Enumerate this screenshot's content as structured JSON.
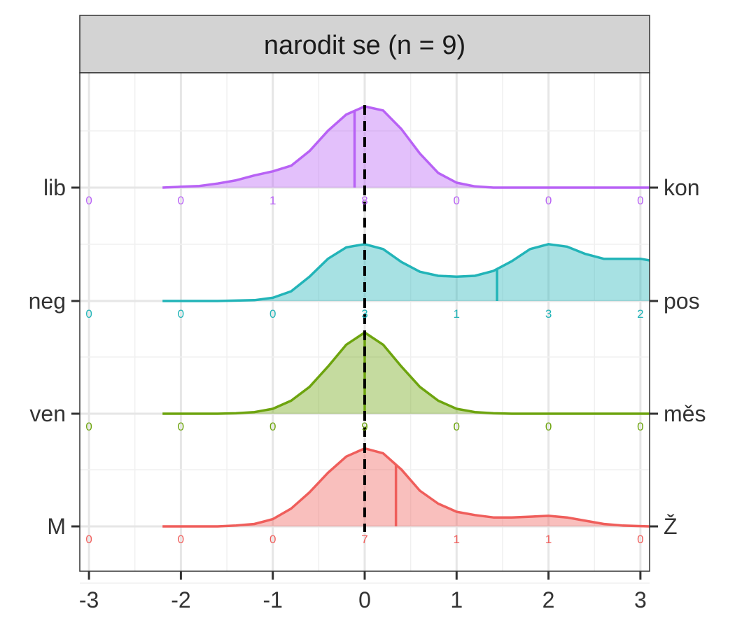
{
  "chart_data": {
    "type": "ridgeline-density",
    "title": "narodit se (n = 9)",
    "xlim": [
      -3.1,
      3.1
    ],
    "x_ticks": [
      -3,
      -2,
      -1,
      0,
      1,
      2,
      3
    ],
    "x_tick_labels": [
      "-3",
      "-2",
      "-1",
      "0",
      "1",
      "2",
      "3"
    ],
    "grid": true,
    "reference_line_x": 0,
    "count_positions": [
      -3,
      -2,
      -1,
      0,
      1,
      2,
      3
    ],
    "series": [
      {
        "left_label": "lib",
        "right_label": "kon",
        "color": "#b862f5",
        "counts": [
          "0",
          "0",
          "1",
          "8",
          "0",
          "0",
          "0"
        ],
        "mean": -0.11,
        "density": [
          [
            -2.2,
            0.0
          ],
          [
            -2.0,
            0.01
          ],
          [
            -1.8,
            0.02
          ],
          [
            -1.6,
            0.05
          ],
          [
            -1.4,
            0.09
          ],
          [
            -1.2,
            0.15
          ],
          [
            -1.0,
            0.2
          ],
          [
            -0.8,
            0.27
          ],
          [
            -0.6,
            0.45
          ],
          [
            -0.4,
            0.7
          ],
          [
            -0.2,
            0.9
          ],
          [
            0.0,
            1.0
          ],
          [
            0.2,
            0.95
          ],
          [
            0.4,
            0.72
          ],
          [
            0.6,
            0.42
          ],
          [
            0.8,
            0.18
          ],
          [
            1.0,
            0.06
          ],
          [
            1.2,
            0.015
          ],
          [
            1.4,
            0.0
          ],
          [
            3.1,
            0.0
          ]
        ]
      },
      {
        "left_label": "neg",
        "right_label": "pos",
        "color": "#22b4b8",
        "counts": [
          "0",
          "0",
          "0",
          "3",
          "1",
          "3",
          "2"
        ],
        "mean": 1.44,
        "density": [
          [
            -2.2,
            0.0
          ],
          [
            -1.6,
            0.0
          ],
          [
            -1.2,
            0.01
          ],
          [
            -1.0,
            0.04
          ],
          [
            -0.8,
            0.12
          ],
          [
            -0.6,
            0.3
          ],
          [
            -0.4,
            0.52
          ],
          [
            -0.2,
            0.66
          ],
          [
            0.0,
            0.7
          ],
          [
            0.2,
            0.64
          ],
          [
            0.4,
            0.48
          ],
          [
            0.6,
            0.36
          ],
          [
            0.8,
            0.31
          ],
          [
            1.0,
            0.3
          ],
          [
            1.2,
            0.31
          ],
          [
            1.4,
            0.37
          ],
          [
            1.6,
            0.49
          ],
          [
            1.8,
            0.64
          ],
          [
            2.0,
            0.7
          ],
          [
            2.2,
            0.67
          ],
          [
            2.4,
            0.58
          ],
          [
            2.6,
            0.52
          ],
          [
            2.8,
            0.52
          ],
          [
            3.0,
            0.52
          ],
          [
            3.1,
            0.5
          ]
        ]
      },
      {
        "left_label": "ven",
        "right_label": "měs",
        "color": "#6da40e",
        "counts": [
          "0",
          "0",
          "0",
          "9",
          "0",
          "0",
          "0"
        ],
        "mean": 0.0,
        "density": [
          [
            -2.2,
            0.0
          ],
          [
            -1.6,
            0.0
          ],
          [
            -1.4,
            0.005
          ],
          [
            -1.2,
            0.02
          ],
          [
            -1.0,
            0.06
          ],
          [
            -0.8,
            0.16
          ],
          [
            -0.6,
            0.33
          ],
          [
            -0.4,
            0.58
          ],
          [
            -0.2,
            0.85
          ],
          [
            0.0,
            1.0
          ],
          [
            0.2,
            0.85
          ],
          [
            0.4,
            0.58
          ],
          [
            0.6,
            0.33
          ],
          [
            0.8,
            0.16
          ],
          [
            1.0,
            0.06
          ],
          [
            1.2,
            0.02
          ],
          [
            1.4,
            0.005
          ],
          [
            1.6,
            0.0
          ],
          [
            3.1,
            0.0
          ]
        ]
      },
      {
        "left_label": "M",
        "right_label": "Ž",
        "color": "#ef5e5b",
        "counts": [
          "0",
          "0",
          "0",
          "7",
          "1",
          "1",
          "0"
        ],
        "mean": 0.34,
        "density": [
          [
            -2.2,
            0.0
          ],
          [
            -1.6,
            0.0
          ],
          [
            -1.4,
            0.01
          ],
          [
            -1.2,
            0.03
          ],
          [
            -1.0,
            0.09
          ],
          [
            -0.8,
            0.22
          ],
          [
            -0.6,
            0.42
          ],
          [
            -0.4,
            0.66
          ],
          [
            -0.2,
            0.86
          ],
          [
            0.0,
            0.96
          ],
          [
            0.2,
            0.9
          ],
          [
            0.4,
            0.7
          ],
          [
            0.6,
            0.44
          ],
          [
            0.8,
            0.28
          ],
          [
            1.0,
            0.18
          ],
          [
            1.2,
            0.14
          ],
          [
            1.4,
            0.11
          ],
          [
            1.6,
            0.11
          ],
          [
            1.8,
            0.12
          ],
          [
            2.0,
            0.13
          ],
          [
            2.2,
            0.11
          ],
          [
            2.4,
            0.07
          ],
          [
            2.6,
            0.03
          ],
          [
            2.8,
            0.01
          ],
          [
            3.1,
            0.0
          ]
        ]
      }
    ]
  }
}
